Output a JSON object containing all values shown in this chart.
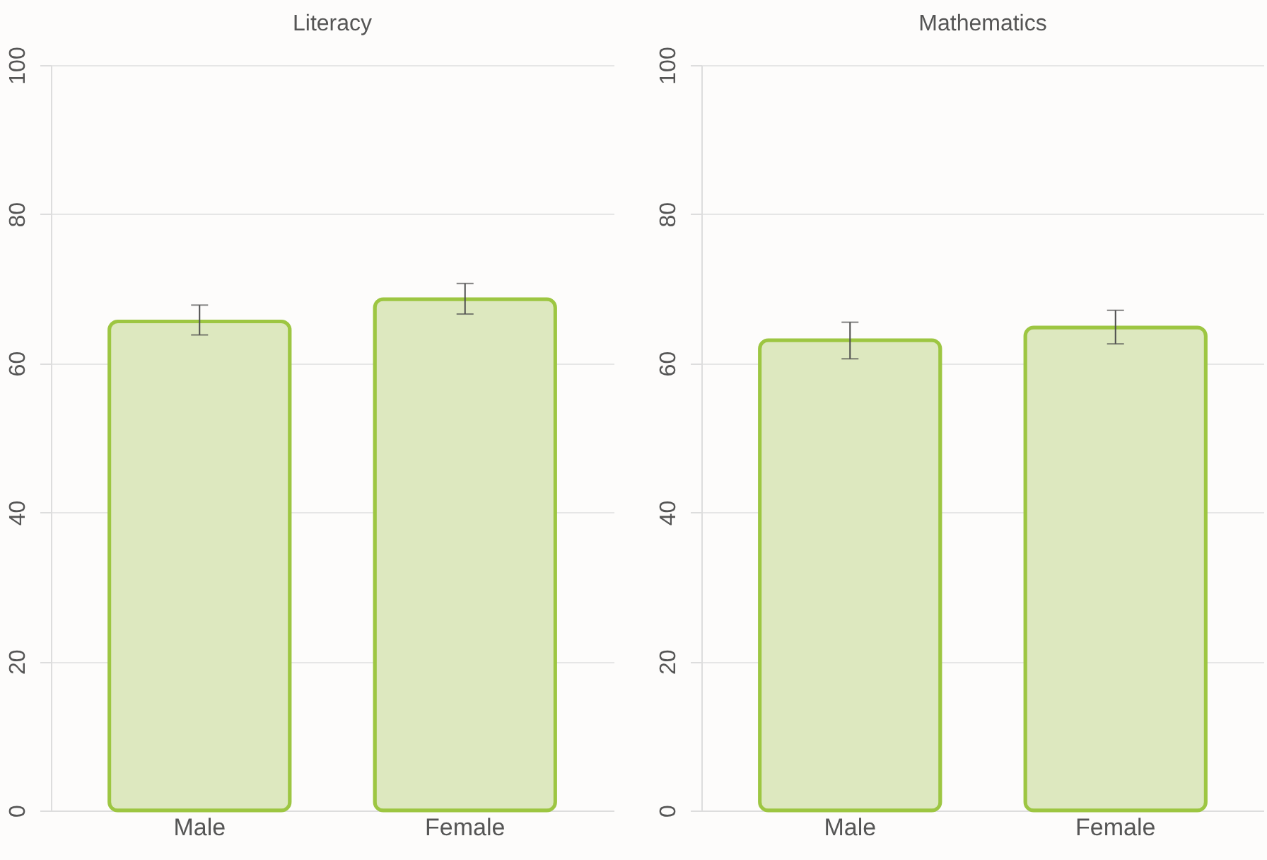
{
  "chart_data": [
    {
      "type": "bar",
      "title": "Literacy",
      "categories": [
        "Male",
        "Female"
      ],
      "values": [
        65.6,
        68.6
      ],
      "errors": [
        [
          63.8,
          67.8
        ],
        [
          66.6,
          70.7
        ]
      ],
      "color": "#dde8bf",
      "ylim": [
        0,
        100
      ],
      "yticks": [
        0,
        20,
        40,
        60,
        80,
        100
      ],
      "grid": "y"
    },
    {
      "type": "bar",
      "title": "Mathematics",
      "categories": [
        "Male",
        "Female"
      ],
      "values": [
        63.1,
        64.8
      ],
      "errors": [
        [
          60.6,
          65.5
        ],
        [
          62.6,
          67.1
        ]
      ],
      "color": "#dde8bf",
      "ylim": [
        0,
        100
      ],
      "yticks": [
        0,
        20,
        40,
        60,
        80,
        100
      ],
      "grid": "y"
    }
  ]
}
